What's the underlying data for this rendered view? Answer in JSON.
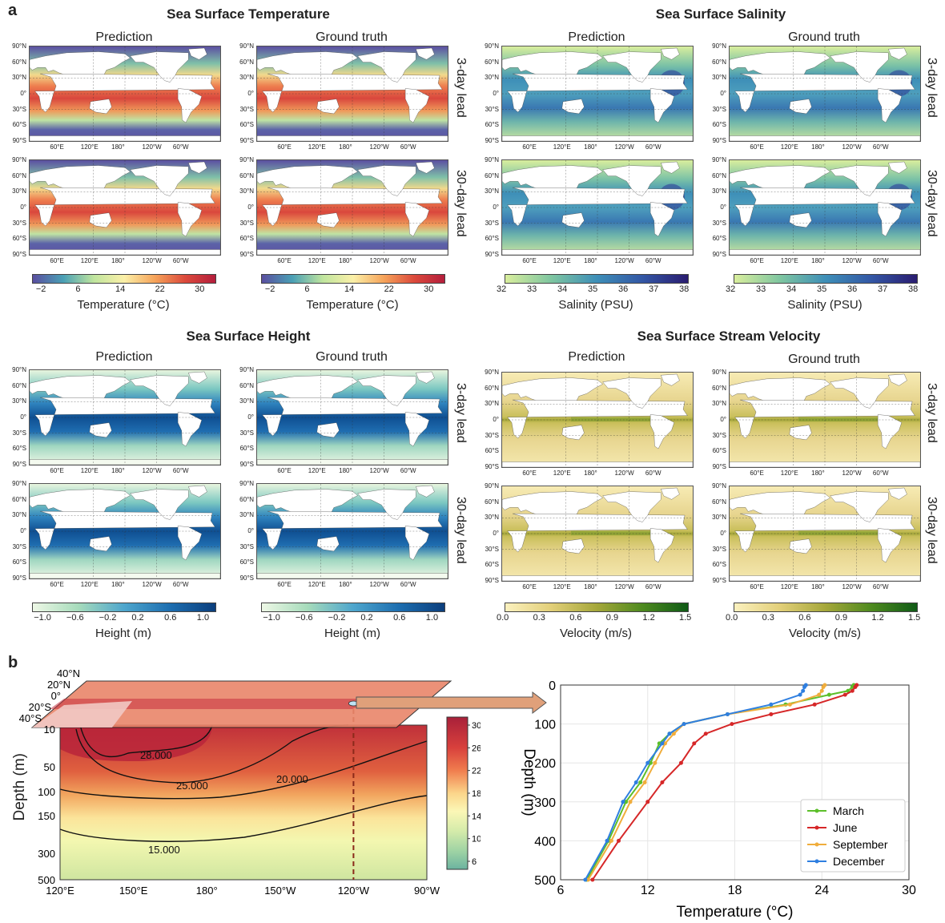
{
  "panel_a_label": "a",
  "panel_b_label": "b",
  "groups": {
    "sst": {
      "title": "Sea Surface Temperature",
      "cbar_label": "Temperature (°C)",
      "cbar_ticks": [
        "−2",
        "6",
        "14",
        "22",
        "30"
      ]
    },
    "sss": {
      "title": "Sea Surface Salinity",
      "cbar_label": "Salinity (PSU)",
      "cbar_ticks": [
        "32",
        "33",
        "34",
        "35",
        "36",
        "37",
        "38"
      ]
    },
    "ssh": {
      "title": "Sea Surface Height",
      "cbar_label": "Height (m)",
      "cbar_ticks": [
        "−1.0",
        "−0.6",
        "−0.2",
        "0.2",
        "0.6",
        "1.0"
      ]
    },
    "ssv": {
      "title": "Sea Surface Stream Velocity",
      "cbar_label": "Velocity (m/s)",
      "cbar_ticks": [
        "0.0",
        "0.3",
        "0.6",
        "0.9",
        "1.2",
        "1.5"
      ]
    }
  },
  "subtitles": {
    "prediction": "Prediction",
    "truth": "Ground truth"
  },
  "leads": {
    "short": "3-day lead",
    "long": "30-day lead"
  },
  "map_lat_ticks": [
    "90°N",
    "60°N",
    "30°N",
    "0°",
    "30°S",
    "60°S",
    "90°S"
  ],
  "map_lon_ticks": [
    "60°E",
    "120°E",
    "180°",
    "120°W",
    "60°W"
  ],
  "section": {
    "lat_labels": [
      "40°N",
      "20°N",
      "0°",
      "20°S",
      "40°S"
    ],
    "depth_axis_label": "Depth (m)",
    "depth_ticks": [
      "10",
      "50",
      "100",
      "150",
      "300",
      "500"
    ],
    "lon_ticks": [
      "120°E",
      "150°E",
      "180°",
      "150°W",
      "120°W",
      "90°W"
    ],
    "contour_labels": [
      "28.000",
      "25.000",
      "20.000",
      "15.000"
    ],
    "cbar_ticks": [
      "30",
      "26",
      "22",
      "18",
      "14",
      "10",
      "6"
    ]
  },
  "chart_data": {
    "type": "line",
    "xlabel": "Temperature (°C)",
    "ylabel": "Depth (m)",
    "xlim": [
      6,
      30
    ],
    "ylim": [
      500,
      0
    ],
    "xticks": [
      6,
      12,
      18,
      24,
      30
    ],
    "yticks": [
      0,
      100,
      200,
      300,
      400,
      500
    ],
    "grid": true,
    "legend_position": "bottom-right",
    "series": [
      {
        "name": "March",
        "color": "#5cbf2a",
        "temperature": [
          26.2,
          26.1,
          25.8,
          24.5,
          21.5,
          17.5,
          14.5,
          13.5,
          12.8,
          12.2,
          11.5,
          10.5,
          9.3,
          7.8
        ],
        "depth": [
          0,
          5,
          15,
          25,
          50,
          75,
          100,
          125,
          150,
          200,
          250,
          300,
          400,
          500
        ]
      },
      {
        "name": "June",
        "color": "#d62728",
        "temperature": [
          26.4,
          26.3,
          26.1,
          25.6,
          23.5,
          20.5,
          17.8,
          16.0,
          15.2,
          14.3,
          13.0,
          12.0,
          10.0,
          8.2
        ],
        "depth": [
          0,
          5,
          15,
          25,
          50,
          75,
          100,
          125,
          150,
          200,
          250,
          300,
          400,
          500
        ]
      },
      {
        "name": "September",
        "color": "#f0ad3c",
        "temperature": [
          24.2,
          24.1,
          24.0,
          23.8,
          21.8,
          17.5,
          14.5,
          13.8,
          13.2,
          12.5,
          11.8,
          10.8,
          9.5,
          7.9
        ],
        "depth": [
          0,
          5,
          15,
          25,
          50,
          75,
          100,
          125,
          150,
          200,
          250,
          300,
          400,
          500
        ]
      },
      {
        "name": "December",
        "color": "#2f7fe0",
        "temperature": [
          22.9,
          22.8,
          22.7,
          22.5,
          20.5,
          17.5,
          14.5,
          13.5,
          13.0,
          12.0,
          11.2,
          10.3,
          9.2,
          7.7
        ],
        "depth": [
          0,
          5,
          15,
          25,
          50,
          75,
          100,
          125,
          150,
          200,
          250,
          300,
          400,
          500
        ]
      }
    ]
  }
}
